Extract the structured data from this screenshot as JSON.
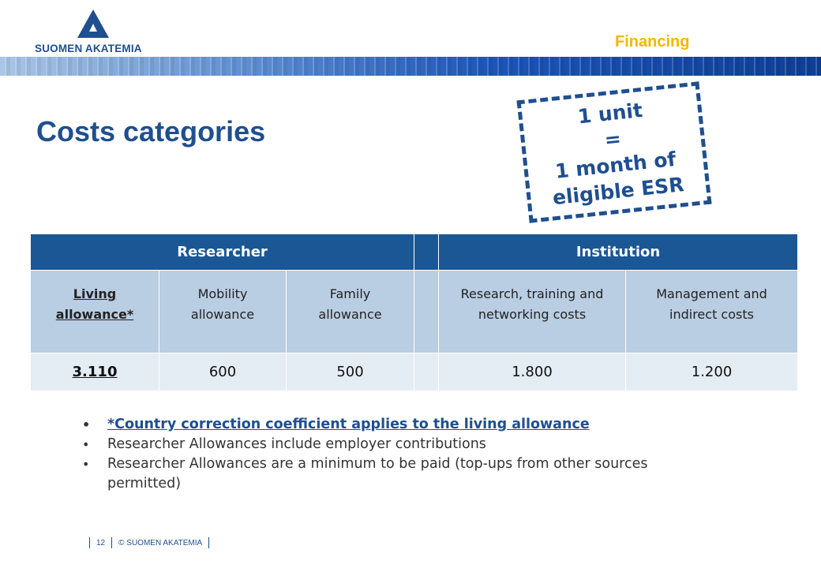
{
  "header": {
    "logo_text": "SUOMEN AKATEMIA",
    "section_label": "Financing"
  },
  "slide": {
    "title": "Costs categories"
  },
  "unit_box": {
    "line1": "1 unit",
    "line2": "=",
    "line3": "1 month of",
    "line4": "eligible ESR"
  },
  "table": {
    "groups": {
      "researcher": "Researcher",
      "institution": "Institution"
    },
    "columns": [
      {
        "line1": "Living",
        "line2": "allowance*"
      },
      {
        "line1": "Mobility",
        "line2": "allowance"
      },
      {
        "line1": "Family",
        "line2": "allowance"
      },
      {
        "line1": "Research, training and",
        "line2": "networking costs"
      },
      {
        "line1": "Management and",
        "line2": "indirect costs"
      }
    ],
    "values": [
      "3.110",
      "600",
      "500",
      "1.800",
      "1.200"
    ]
  },
  "notes": [
    "*Country correction coefficient applies to the living allowance",
    "Researcher Allowances include employer contributions",
    "Researcher Allowances are a minimum to be paid (top-ups from other sources permitted)"
  ],
  "footer": {
    "page_number": "12",
    "copyright": "© SUOMEN AKATEMIA"
  },
  "colors": {
    "brand_blue": "#1f4f8f",
    "accent_yellow": "#f2b800",
    "header_blue": "#1a5794"
  }
}
